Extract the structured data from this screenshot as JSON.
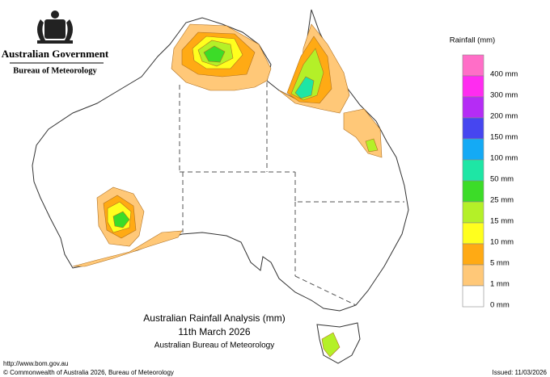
{
  "header": {
    "government": "Australian Government",
    "agency": "Bureau of Meteorology"
  },
  "legend": {
    "title": "Rainfall (mm)",
    "colors": [
      "#ff6ec7",
      "#ff2cf0",
      "#b52cf5",
      "#4646f0",
      "#14aaf5",
      "#1ee6a5",
      "#3cdc28",
      "#b4f028",
      "#ffff1e",
      "#ffaa14",
      "#ffc878",
      "#ffffff"
    ],
    "labels": [
      "400 mm",
      "300 mm",
      "200 mm",
      "150 mm",
      "100 mm",
      "50 mm",
      "25 mm",
      "15 mm",
      "10 mm",
      "5 mm",
      "1 mm",
      "0 mm"
    ]
  },
  "caption": {
    "title": "Australian Rainfall Analysis (mm)",
    "date": "11th March 2026",
    "source": "Australian Bureau of Meteorology"
  },
  "footer": {
    "url": "http://www.bom.gov.au",
    "copyright": "© Commonwealth of Australia 2026, Bureau of Meteorology",
    "issued": "Issued: 11/03/2026"
  }
}
